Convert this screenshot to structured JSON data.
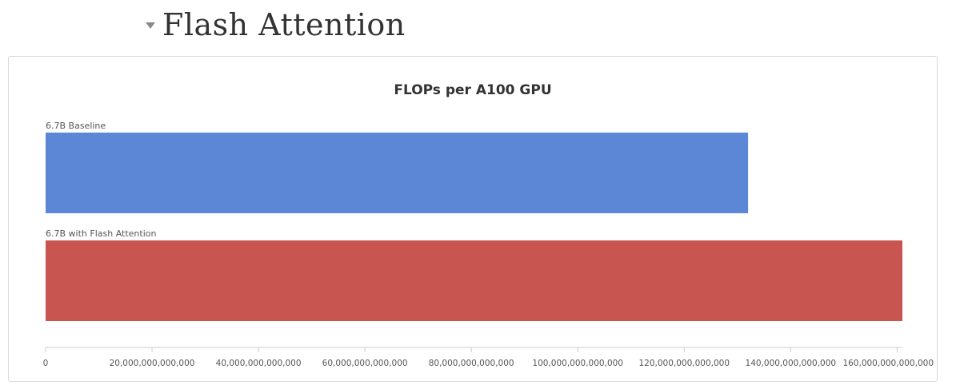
{
  "section": {
    "title": "Flash Attention",
    "toggle_icon": "triangle-down-icon"
  },
  "chart_data": {
    "type": "bar",
    "orientation": "horizontal",
    "title": "FLOPs per A100 GPU",
    "xlabel": "",
    "ylabel": "",
    "xlim": [
      0,
      161000000000000
    ],
    "grid": false,
    "legend": "none",
    "categories": [
      "6.7B Baseline",
      "6.7B with Flash Attention"
    ],
    "values": [
      132000000000000,
      161000000000000
    ],
    "colors": [
      "#5b87d6",
      "#c95550"
    ],
    "ticks": [
      0,
      20000000000000,
      40000000000000,
      60000000000000,
      80000000000000,
      100000000000000,
      120000000000000,
      140000000000000,
      160000000000000
    ],
    "tick_labels": [
      "0",
      "20,000,000,000,000",
      "40,000,000,000,000",
      "60,000,000,000,000",
      "80,000,000,000,000",
      "100,000,000,000,000",
      "120,000,000,000,000",
      "140,000,000,000,000",
      "160,000,000,000,000"
    ]
  }
}
